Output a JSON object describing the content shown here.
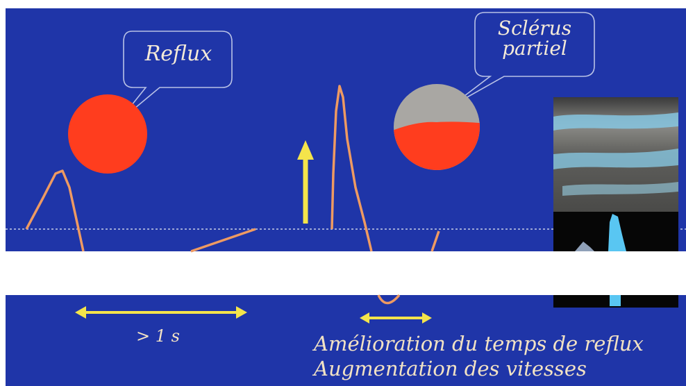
{
  "slide": {
    "background_color": "#1f35a8",
    "band_color": "#ffffff"
  },
  "left_panel": {
    "bubble_text": "Reflux",
    "sphere_color": "#ff3d1e",
    "duration_label": "> 1 s"
  },
  "right_panel": {
    "bubble_text": "Sclérus partiel",
    "sphere_top_color": "#a9a7a3",
    "sphere_bottom_color": "#ff3d1e"
  },
  "caption": {
    "line1": "Amélioration du temps de reflux",
    "line2": "Augmentation des vitesses"
  },
  "colors": {
    "waveform": "#ee9a62",
    "arrow": "#f4e44b",
    "baseline": "#c9cfe6",
    "bubble_outline": "#b9c2e6"
  }
}
